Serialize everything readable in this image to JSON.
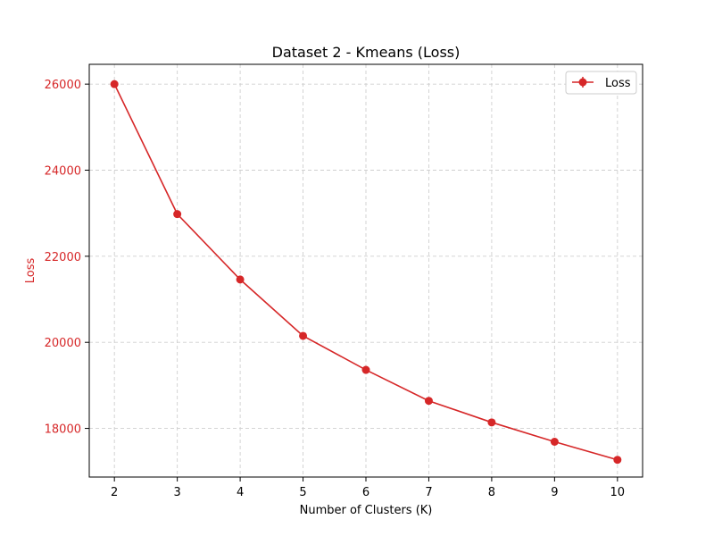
{
  "chart_data": {
    "type": "line",
    "title": "Dataset 2 - Kmeans (Loss)",
    "xlabel": "Number of Clusters (K)",
    "ylabel": "Loss",
    "x": [
      2,
      3,
      4,
      5,
      6,
      7,
      8,
      9,
      10
    ],
    "xticks": [
      "2",
      "3",
      "4",
      "5",
      "6",
      "7",
      "8",
      "9",
      "10"
    ],
    "yticks": [
      18000,
      20000,
      22000,
      24000,
      26000
    ],
    "ytick_labels": [
      "18000",
      "20000",
      "22000",
      "24000",
      "26000"
    ],
    "xlim": [
      1.6,
      10.4
    ],
    "ylim": [
      16870,
      26460
    ],
    "grid": true,
    "legend_position": "top-right",
    "series": [
      {
        "name": "Loss",
        "color": "#d62728",
        "marker": "circle",
        "values": [
          26000,
          22980,
          21460,
          20150,
          19360,
          18640,
          18140,
          17690,
          17270
        ]
      }
    ],
    "colors": {
      "accent": "#d62728",
      "axis": "#000000",
      "grid": "#cfcfcf"
    }
  }
}
